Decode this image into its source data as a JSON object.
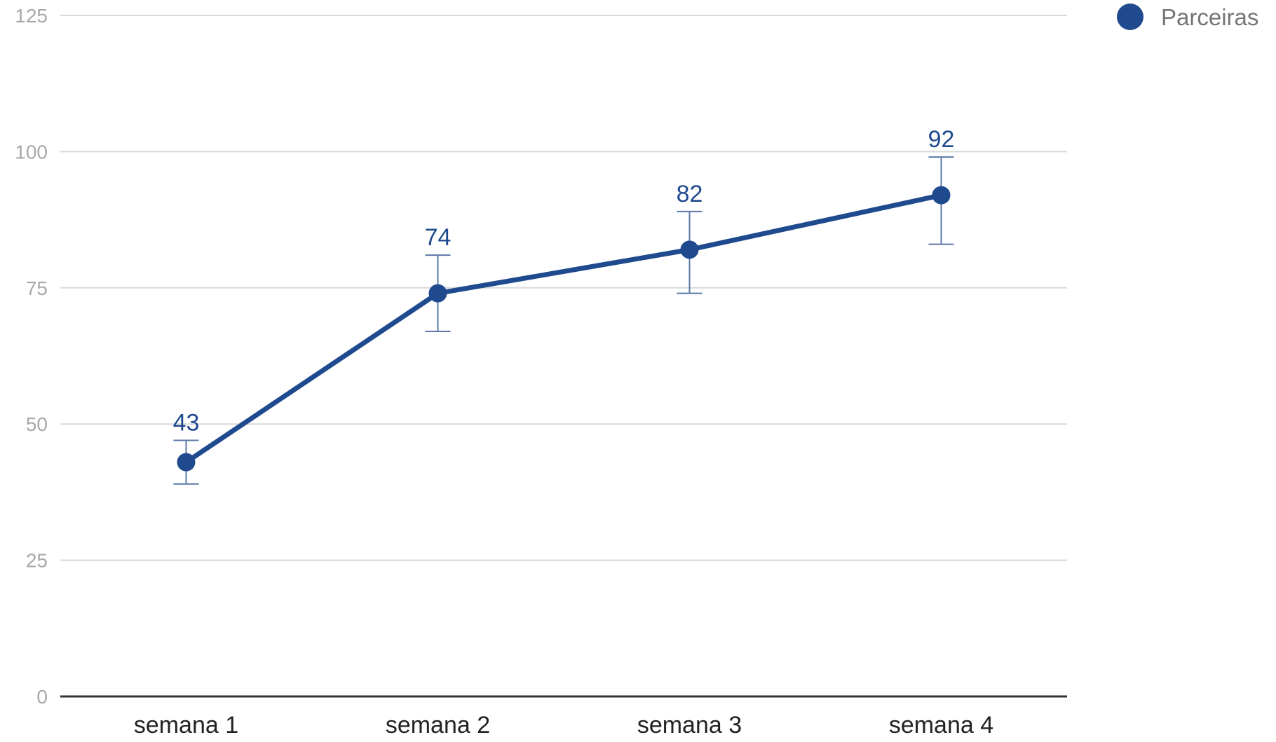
{
  "chart_data": {
    "type": "line",
    "categories": [
      "semana 1",
      "semana 2",
      "semana 3",
      "semana 4"
    ],
    "series": [
      {
        "name": "Parceiras",
        "values": [
          43,
          74,
          82,
          92
        ],
        "error_low": [
          39,
          67,
          74,
          83
        ],
        "error_high": [
          47,
          81,
          89,
          99
        ],
        "data_labels": [
          "43",
          "74",
          "82",
          "92"
        ],
        "color": "#1f4a8e"
      }
    ],
    "ylim": [
      0,
      125
    ],
    "y_ticks": [
      0,
      25,
      50,
      75,
      100,
      125
    ],
    "y_tick_labels": [
      "0",
      "25",
      "50",
      "75",
      "100",
      "125"
    ],
    "grid": true,
    "legend": {
      "position": "top-right",
      "marker": "circle"
    },
    "colors": {
      "series": "#1f4a8e",
      "grid": "#d9d9d9",
      "axis": "#333333",
      "y_tick_text": "#a8a8a8",
      "x_tick_text": "#222222",
      "legend_text": "#757575"
    }
  }
}
